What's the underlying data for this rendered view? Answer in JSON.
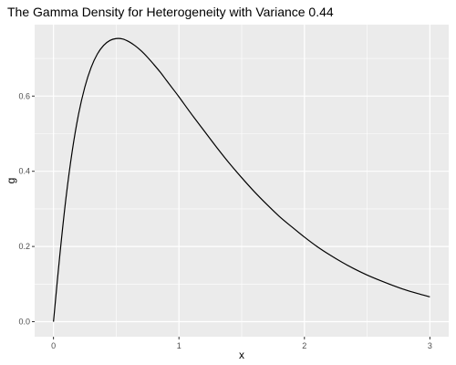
{
  "chart_data": {
    "type": "line",
    "title": "The Gamma Density for Heterogeneity with Variance 0.44",
    "xlabel": "x",
    "ylabel": "g",
    "xlim": [
      -0.15,
      3.15
    ],
    "ylim": [
      -0.04,
      0.79
    ],
    "x_ticks": [
      0,
      1,
      2,
      3
    ],
    "x_tick_labels": [
      "0",
      "1",
      "2",
      "3"
    ],
    "y_ticks": [
      0.0,
      0.2,
      0.4,
      0.6
    ],
    "y_tick_labels": [
      "0.0",
      "0.2",
      "0.4",
      "0.6"
    ],
    "x_minor_ticks": [
      0.5,
      1.5,
      2.5
    ],
    "y_minor_ticks": [
      0.1,
      0.3,
      0.5,
      0.7
    ],
    "grid": true,
    "colors": {
      "panel": "#ebebeb",
      "grid": "#ffffff",
      "line": "#000000"
    },
    "series": [
      {
        "x": [
          0,
          0.05,
          0.1,
          0.15,
          0.2,
          0.25,
          0.3,
          0.35,
          0.4,
          0.45,
          0.5,
          0.55,
          0.6,
          0.65,
          0.7,
          0.75,
          0.8,
          0.85,
          0.9,
          0.95,
          1.0,
          1.1,
          1.2,
          1.3,
          1.4,
          1.5,
          1.6,
          1.7,
          1.8,
          1.9,
          2.0,
          2.1,
          2.2,
          2.3,
          2.4,
          2.5,
          2.6,
          2.7,
          2.8,
          2.9,
          3.0
        ],
        "values": [
          0.0,
          0.175,
          0.33,
          0.455,
          0.552,
          0.624,
          0.676,
          0.712,
          0.735,
          0.748,
          0.753,
          0.752,
          0.745,
          0.734,
          0.72,
          0.703,
          0.684,
          0.664,
          0.642,
          0.62,
          0.598,
          0.552,
          0.508,
          0.464,
          0.422,
          0.383,
          0.346,
          0.312,
          0.28,
          0.252,
          0.225,
          0.2,
          0.178,
          0.158,
          0.14,
          0.124,
          0.11,
          0.097,
          0.085,
          0.075,
          0.066
        ]
      }
    ]
  }
}
